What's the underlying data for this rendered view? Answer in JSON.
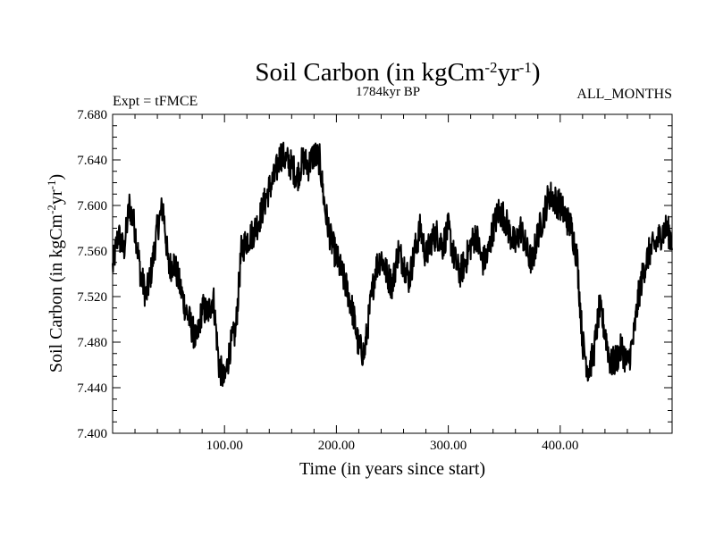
{
  "chart_data": {
    "type": "line",
    "title": "Soil Carbon (in kgCm",
    "title_sup1": "-2",
    "title_mid": "yr",
    "title_sup2": "-1",
    "title_end": ")",
    "subtitle_center": "1784kyr BP",
    "subtitle_left": "Expt = tFMCE",
    "subtitle_right": "ALL_MONTHS",
    "xlabel": "Time (in years since start)",
    "ylabel": "Soil Carbon (in kgCm",
    "ylabel_sup1": "-2",
    "ylabel_mid": "yr",
    "ylabel_sup2": "-1",
    "ylabel_end": ")",
    "xlim": [
      0,
      500
    ],
    "ylim": [
      7.4,
      7.68
    ],
    "x_ticks": [
      {
        "value": 100,
        "label": "100.00"
      },
      {
        "value": 200,
        "label": "200.00"
      },
      {
        "value": 300,
        "label": "300.00"
      },
      {
        "value": 400,
        "label": "400.00"
      }
    ],
    "y_ticks": [
      {
        "value": 7.4,
        "label": "7.400"
      },
      {
        "value": 7.44,
        "label": "7.440"
      },
      {
        "value": 7.48,
        "label": "7.480"
      },
      {
        "value": 7.52,
        "label": "7.520"
      },
      {
        "value": 7.56,
        "label": "7.560"
      },
      {
        "value": 7.6,
        "label": "7.600"
      },
      {
        "value": 7.64,
        "label": "7.640"
      },
      {
        "value": 7.68,
        "label": "7.680"
      }
    ],
    "series": [
      {
        "name": "Soil Carbon",
        "color": "#000000",
        "x": [
          0,
          5,
          10,
          15,
          20,
          25,
          30,
          35,
          40,
          45,
          50,
          55,
          60,
          65,
          70,
          75,
          80,
          85,
          90,
          95,
          100,
          105,
          110,
          115,
          120,
          125,
          130,
          135,
          140,
          145,
          150,
          155,
          160,
          165,
          170,
          175,
          180,
          185,
          190,
          195,
          200,
          205,
          210,
          215,
          220,
          225,
          230,
          235,
          240,
          245,
          250,
          255,
          260,
          265,
          270,
          275,
          280,
          285,
          290,
          295,
          300,
          305,
          310,
          315,
          320,
          325,
          330,
          335,
          340,
          345,
          350,
          355,
          360,
          365,
          370,
          375,
          380,
          385,
          390,
          395,
          400,
          405,
          410,
          415,
          420,
          425,
          430,
          435,
          440,
          445,
          450,
          455,
          460,
          465,
          470,
          475,
          480,
          485,
          490,
          495,
          500
        ],
        "y": [
          7.545,
          7.575,
          7.56,
          7.6,
          7.58,
          7.54,
          7.52,
          7.545,
          7.58,
          7.6,
          7.545,
          7.55,
          7.53,
          7.51,
          7.495,
          7.48,
          7.51,
          7.505,
          7.52,
          7.46,
          7.445,
          7.475,
          7.49,
          7.56,
          7.57,
          7.575,
          7.585,
          7.6,
          7.615,
          7.625,
          7.645,
          7.64,
          7.635,
          7.625,
          7.64,
          7.635,
          7.645,
          7.64,
          7.595,
          7.57,
          7.555,
          7.54,
          7.525,
          7.505,
          7.475,
          7.47,
          7.51,
          7.545,
          7.555,
          7.54,
          7.53,
          7.56,
          7.55,
          7.535,
          7.56,
          7.58,
          7.555,
          7.57,
          7.575,
          7.565,
          7.58,
          7.555,
          7.54,
          7.55,
          7.565,
          7.575,
          7.55,
          7.555,
          7.58,
          7.595,
          7.59,
          7.575,
          7.565,
          7.58,
          7.56,
          7.55,
          7.575,
          7.59,
          7.61,
          7.605,
          7.6,
          7.59,
          7.58,
          7.555,
          7.48,
          7.455,
          7.47,
          7.51,
          7.49,
          7.46,
          7.465,
          7.475,
          7.46,
          7.48,
          7.52,
          7.545,
          7.56,
          7.565,
          7.575,
          7.58,
          7.57
        ]
      }
    ]
  }
}
